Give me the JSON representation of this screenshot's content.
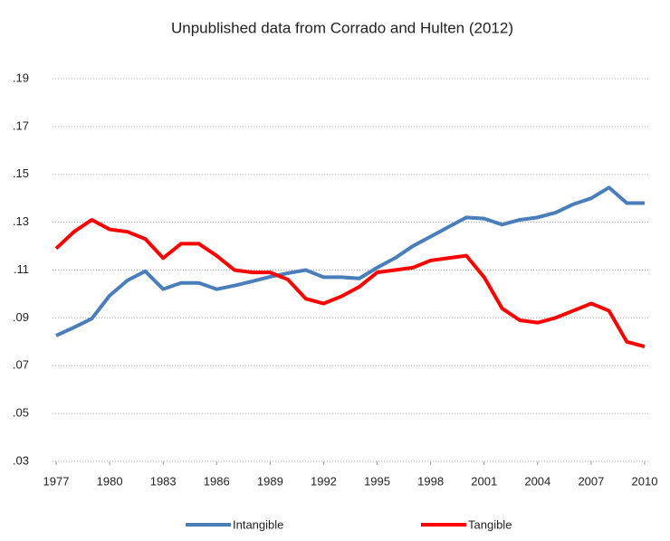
{
  "chart_data": {
    "type": "line",
    "title": "Unpublished data from Corrado and Hulten (2012)",
    "x": [
      1977,
      1978,
      1979,
      1980,
      1981,
      1982,
      1983,
      1984,
      1985,
      1986,
      1987,
      1988,
      1989,
      1990,
      1991,
      1992,
      1993,
      1994,
      1995,
      1996,
      1997,
      1998,
      1999,
      2000,
      2001,
      2002,
      2003,
      2004,
      2005,
      2006,
      2007,
      2008,
      2009,
      2010
    ],
    "series": [
      {
        "name": "Intangible",
        "color": "#4a7ebb",
        "values": [
          0.0826,
          0.086,
          0.0897,
          0.0993,
          0.1057,
          0.1095,
          0.102,
          0.1046,
          0.1046,
          0.102,
          0.1035,
          0.1053,
          0.1072,
          0.1087,
          0.11,
          0.107,
          0.107,
          0.1065,
          0.111,
          0.115,
          0.12,
          0.124,
          0.128,
          0.132,
          0.1315,
          0.129,
          0.131,
          0.132,
          0.134,
          0.1375,
          0.14,
          0.1445,
          0.138,
          0.138
        ]
      },
      {
        "name": "Tangible",
        "color": "#ff0000",
        "values": [
          0.119,
          0.126,
          0.131,
          0.127,
          0.126,
          0.123,
          0.115,
          0.121,
          0.121,
          0.116,
          0.11,
          0.109,
          0.109,
          0.106,
          0.098,
          0.096,
          0.099,
          0.103,
          0.109,
          0.11,
          0.111,
          0.114,
          0.115,
          0.116,
          0.107,
          0.094,
          0.089,
          0.088,
          0.09,
          0.093,
          0.096,
          0.093,
          0.08,
          0.078
        ]
      }
    ],
    "xlim": [
      1977,
      2010
    ],
    "xticks": [
      1977,
      1980,
      1983,
      1986,
      1989,
      1992,
      1995,
      1998,
      2001,
      2004,
      2007,
      2010
    ],
    "ylim": [
      0.03,
      0.19
    ],
    "yticks": [
      {
        "value": 0.19,
        "label": ".19"
      },
      {
        "value": 0.17,
        "label": ".17"
      },
      {
        "value": 0.15,
        "label": ".15"
      },
      {
        "value": 0.13,
        "label": ".13"
      },
      {
        "value": 0.11,
        "label": ".11"
      },
      {
        "value": 0.09,
        "label": ".09"
      },
      {
        "value": 0.07,
        "label": ".07"
      },
      {
        "value": 0.05,
        "label": ".05"
      },
      {
        "value": 0.03,
        "label": ".03"
      }
    ],
    "grid": true,
    "legend": "bottom"
  }
}
